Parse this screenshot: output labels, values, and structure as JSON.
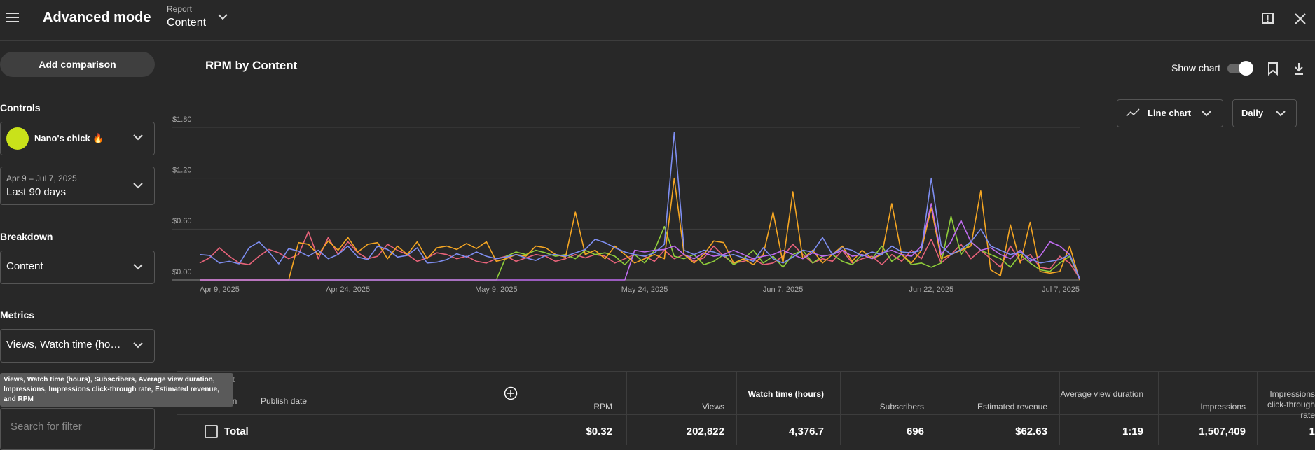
{
  "header": {
    "title": "Advanced mode",
    "report_label": "Report",
    "report_value": "Content"
  },
  "sidebar": {
    "add_comparison": "Add comparison",
    "controls": "Controls",
    "channel": "Nano's chick 🔥",
    "date_range": "Apr 9 – Jul 7, 2025",
    "date_preset": "Last 90 days",
    "breakdown": "Breakdown",
    "breakdown_value": "Content",
    "metrics": "Metrics",
    "metrics_value": "Views, Watch time (ho…",
    "metrics_tooltip": "Views, Watch time (hours), Subscribers, Average view duration, Impressions, Impressions click-through rate, Estimated revenue, and RPM",
    "search_placeholder": "Search for filter"
  },
  "chart_header": {
    "show_chart": "Show chart",
    "chart_type": "Line chart",
    "interval": "Daily"
  },
  "chart_data": {
    "type": "line",
    "title": "RPM by Content",
    "categories": [
      "Apr 9, 2025",
      null,
      null,
      null,
      null,
      null,
      null,
      null,
      null,
      null,
      null,
      null,
      null,
      null,
      null,
      "Apr 24, 2025",
      null,
      null,
      null,
      null,
      null,
      null,
      null,
      null,
      null,
      null,
      null,
      null,
      null,
      null,
      "May 9, 2025",
      null,
      null,
      null,
      null,
      null,
      null,
      null,
      null,
      null,
      null,
      null,
      null,
      null,
      null,
      "May 24, 2025",
      null,
      null,
      null,
      null,
      null,
      null,
      null,
      null,
      null,
      null,
      null,
      null,
      null,
      "Jun 7, 2025",
      null,
      null,
      null,
      null,
      null,
      null,
      null,
      null,
      null,
      null,
      null,
      null,
      null,
      null,
      "Jun 22, 2025",
      null,
      null,
      null,
      null,
      null,
      null,
      null,
      null,
      null,
      null,
      null,
      null,
      null,
      null,
      "Jul 7, 2025"
    ],
    "ylim": [
      0,
      1.8
    ],
    "yticks": [
      {
        "value": 0,
        "label": "$0.00"
      },
      {
        "value": 0.6,
        "label": "$0.60"
      },
      {
        "value": 1.2,
        "label": "$1.20"
      },
      {
        "value": 1.8,
        "label": "$1.80"
      }
    ],
    "grid": true,
    "series": [
      {
        "color": "#e8637a",
        "values": [
          0.2,
          0.26,
          0.38,
          0.28,
          0.2,
          0.18,
          0.28,
          0.36,
          0.32,
          0.25,
          0.3,
          0.57,
          0.25,
          0.5,
          0.3,
          0.45,
          0.32,
          0.25,
          0.28,
          0.42,
          0.35,
          0.3,
          0.22,
          0.26,
          0.32,
          0.3,
          0.25,
          0.28,
          0.22,
          0.2,
          0.25,
          0.28,
          0.22,
          0.26,
          0.3,
          0.28,
          0.22,
          0.25,
          0.3,
          0.26,
          0.3,
          0.28,
          0.2,
          0.25,
          0.3,
          0.28,
          0.22,
          0.35,
          0.25,
          0.3,
          0.22,
          0.26,
          0.4,
          0.28,
          0.2,
          0.22,
          0.25,
          0.18,
          0.2,
          0.28,
          0.42,
          0.3,
          0.2,
          0.25,
          0.22,
          0.35,
          0.2,
          0.25,
          0.28,
          0.18,
          0.3,
          0.22,
          0.35,
          0.25,
          0.48,
          0.2,
          0.3,
          0.42,
          0.25,
          0.35,
          0.25,
          0.15,
          0.4,
          0.22,
          0.3,
          0.15,
          0.13,
          0.28,
          0.2,
          0.02
        ]
      },
      {
        "color": "#8fce3a",
        "values": [
          0,
          0,
          0,
          0,
          0,
          0,
          0,
          0,
          0,
          0,
          0,
          0,
          0,
          0,
          0,
          0,
          0,
          0,
          0,
          0,
          0,
          0,
          0,
          0,
          0,
          0,
          0,
          0,
          0,
          0,
          0,
          0.28,
          0.33,
          0.3,
          0.35,
          0.32,
          0.28,
          0.3,
          0.25,
          0.35,
          0.3,
          0.32,
          0.28,
          0.18,
          0.3,
          0.2,
          0.35,
          0.63,
          0.28,
          0.25,
          0.3,
          0.18,
          0.22,
          0.3,
          0.18,
          0.25,
          0.35,
          0.2,
          0.28,
          0.15,
          0.3,
          0.35,
          0.2,
          0.28,
          0.3,
          0.22,
          0.18,
          0.3,
          0.25,
          0.4,
          0.22,
          0.3,
          0.18,
          0.2,
          0.15,
          0.2,
          0.75,
          0.3,
          0.45,
          0.35,
          0.3,
          0.25,
          0.15,
          0.3,
          0.2,
          0.12,
          0.1,
          0.2,
          0.28,
          0.01
        ]
      },
      {
        "color": "#f5a623",
        "values": [
          0,
          0,
          0,
          0,
          0,
          0,
          0,
          0,
          0,
          0,
          0.44,
          0.42,
          0.3,
          0.46,
          0.35,
          0.5,
          0.33,
          0.42,
          0.44,
          0.25,
          0.4,
          0.3,
          0.45,
          0.25,
          0.38,
          0.4,
          0.36,
          0.43,
          0.37,
          0.45,
          0.22,
          0.25,
          0.3,
          0.28,
          0.4,
          0.38,
          0.3,
          0.27,
          0.8,
          0.3,
          0.35,
          0.25,
          0.4,
          0.3,
          0.2,
          0.25,
          0.3,
          0.25,
          1.2,
          0.3,
          0.2,
          0.3,
          0.46,
          0.44,
          0.2,
          0.25,
          0.18,
          0.3,
          0.8,
          0.2,
          1.04,
          0.25,
          0.35,
          0.2,
          0.3,
          0.4,
          0.22,
          0.35,
          0.25,
          0.3,
          0.9,
          0.3,
          0.2,
          0.35,
          0.85,
          0.25,
          0.3,
          0.35,
          0.4,
          1.05,
          0.12,
          0.05,
          0.65,
          0.2,
          0.68,
          0.1,
          0.08,
          0.1,
          0.4,
          0.0
        ]
      },
      {
        "color": "#c06cf0",
        "values": [
          0,
          0,
          0,
          0,
          0,
          0,
          0,
          0,
          0,
          0,
          0,
          0,
          0,
          0,
          0,
          0,
          0,
          0,
          0,
          0,
          0,
          0,
          0,
          0,
          0,
          0,
          0,
          0,
          0,
          0,
          0,
          0,
          0,
          0,
          0,
          0,
          0,
          0,
          0,
          0,
          0,
          0,
          0,
          0,
          0.35,
          0.33,
          0.35,
          0.36,
          0.4,
          0.3,
          0.25,
          0.32,
          0.28,
          0.3,
          0.35,
          0.3,
          0.25,
          0.28,
          0.3,
          0.35,
          0.3,
          0.25,
          0.32,
          0.28,
          0.3,
          0.35,
          0.28,
          0.3,
          0.25,
          0.32,
          0.35,
          0.3,
          0.28,
          0.4,
          0.9,
          0.3,
          0.45,
          0.7,
          0.45,
          0.35,
          0.38,
          0.3,
          0.25,
          0.35,
          0.22,
          0.28,
          0.45,
          0.4,
          0.3,
          0.01
        ]
      },
      {
        "color": "#7e8ef1",
        "values": [
          0.3,
          0.29,
          0.2,
          0.22,
          0.19,
          0.38,
          0.45,
          0.33,
          0.19,
          0.37,
          0.34,
          0.28,
          0.35,
          0.25,
          0.3,
          0.4,
          0.27,
          0.24,
          0.4,
          0.36,
          0.27,
          0.29,
          0.38,
          0.2,
          0.21,
          0.24,
          0.31,
          0.27,
          0.33,
          0.28,
          0.25,
          0.27,
          0.3,
          0.26,
          0.23,
          0.29,
          0.3,
          0.28,
          0.32,
          0.36,
          0.48,
          0.44,
          0.38,
          0.33,
          0.3,
          0.28,
          0.32,
          0.42,
          1.74,
          0.35,
          0.3,
          0.35,
          0.33,
          0.28,
          0.3,
          0.26,
          0.22,
          0.38,
          0.25,
          0.2,
          0.27,
          0.35,
          0.33,
          0.5,
          0.3,
          0.38,
          0.35,
          0.28,
          0.33,
          0.3,
          0.4,
          0.33,
          0.32,
          0.35,
          1.2,
          0.4,
          0.3,
          0.36,
          0.45,
          0.6,
          0.4,
          0.35,
          0.3,
          0.33,
          0.25,
          0.2,
          0.22,
          0.24,
          0.3,
          0.02
        ]
      }
    ]
  },
  "table": {
    "headers": [
      "Content",
      "Duration",
      "Publish date",
      "RPM",
      "Views",
      "Watch time (hours)",
      "Subscribers",
      "Estimated revenue",
      "Average view duration",
      "Impressions",
      "Impressions click-through rate"
    ],
    "total": [
      "Total",
      "$0.32",
      "202,822",
      "4,376.7",
      "696",
      "$62.63",
      "1:19",
      "1,507,409",
      "1"
    ]
  }
}
